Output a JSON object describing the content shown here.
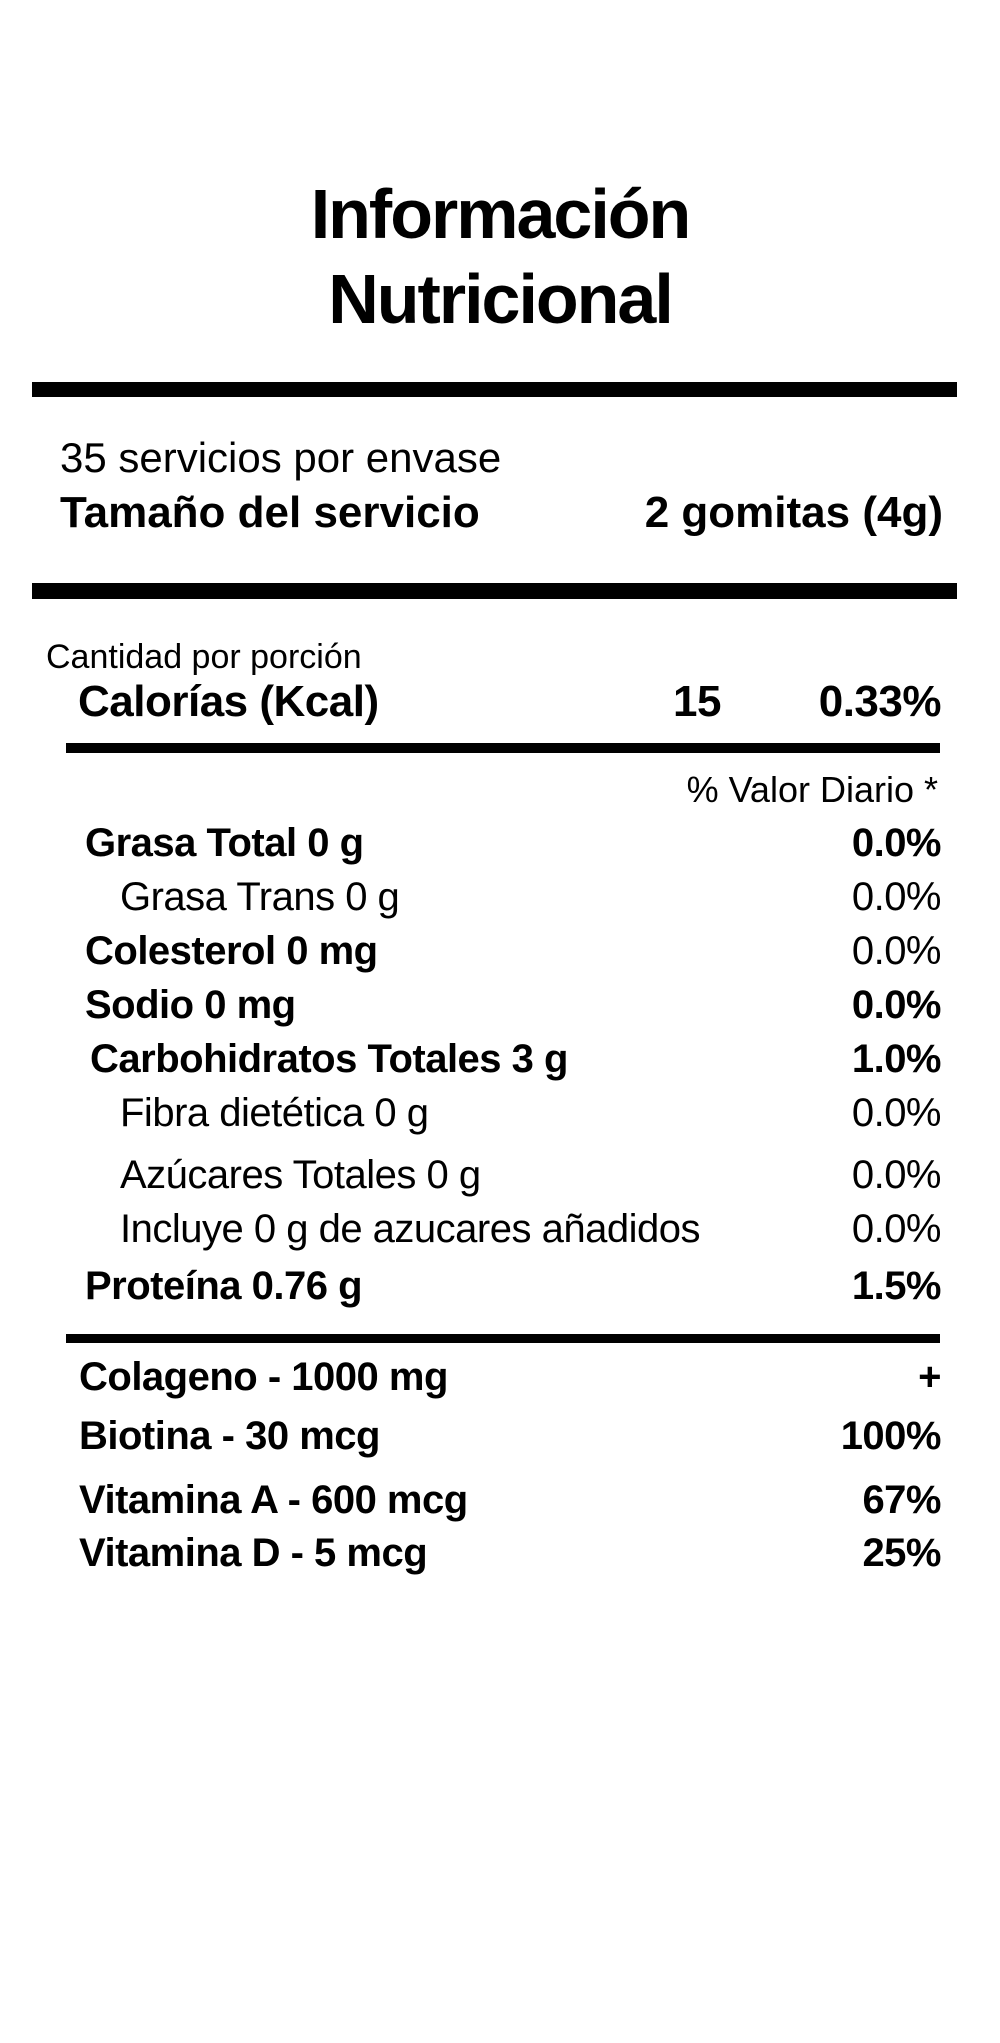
{
  "colors": {
    "text": "#000000",
    "background": "#ffffff"
  },
  "label": {
    "title": "Información\nNutricional",
    "servings_per_container": "35 servicios por envase",
    "serving_size": {
      "label": "Tamaño del servicio",
      "value": "2 gomitas (4g)"
    },
    "amount_per_serving": "Cantidad por porción",
    "calories": {
      "name": "Calorías (Kcal)",
      "amount": "15",
      "daily_value": "0.33%"
    },
    "daily_value_header": "% Valor Diario *",
    "nutrients": [
      {
        "name": "Grasa Total 0 g",
        "daily_value": "0.0%"
      },
      {
        "name": "Grasa Trans 0 g",
        "daily_value": "0.0%"
      },
      {
        "name": "Colesterol 0 mg",
        "daily_value": "0.0%"
      },
      {
        "name": "Sodio 0 mg",
        "daily_value": "0.0%"
      },
      {
        "name": "Carbohidratos Totales 3 g",
        "daily_value": "1.0%"
      },
      {
        "name": "Fibra dietética 0 g",
        "daily_value": "0.0%"
      },
      {
        "name": "Azúcares Totales 0 g",
        "daily_value": "0.0%"
      },
      {
        "name": "Incluye 0 g de azucares añadidos",
        "daily_value": "0.0%"
      },
      {
        "name": "Proteína 0.76 g",
        "daily_value": "1.5%"
      }
    ],
    "supplements": [
      {
        "name": "Colageno -  1000 mg",
        "daily_value": "+"
      },
      {
        "name": "Biotina -  30 mcg",
        "daily_value": "100%"
      },
      {
        "name": "Vitamina A -  600 mcg",
        "daily_value": "67%"
      },
      {
        "name": "Vitamina D - 5 mcg",
        "daily_value": "25%"
      }
    ]
  }
}
